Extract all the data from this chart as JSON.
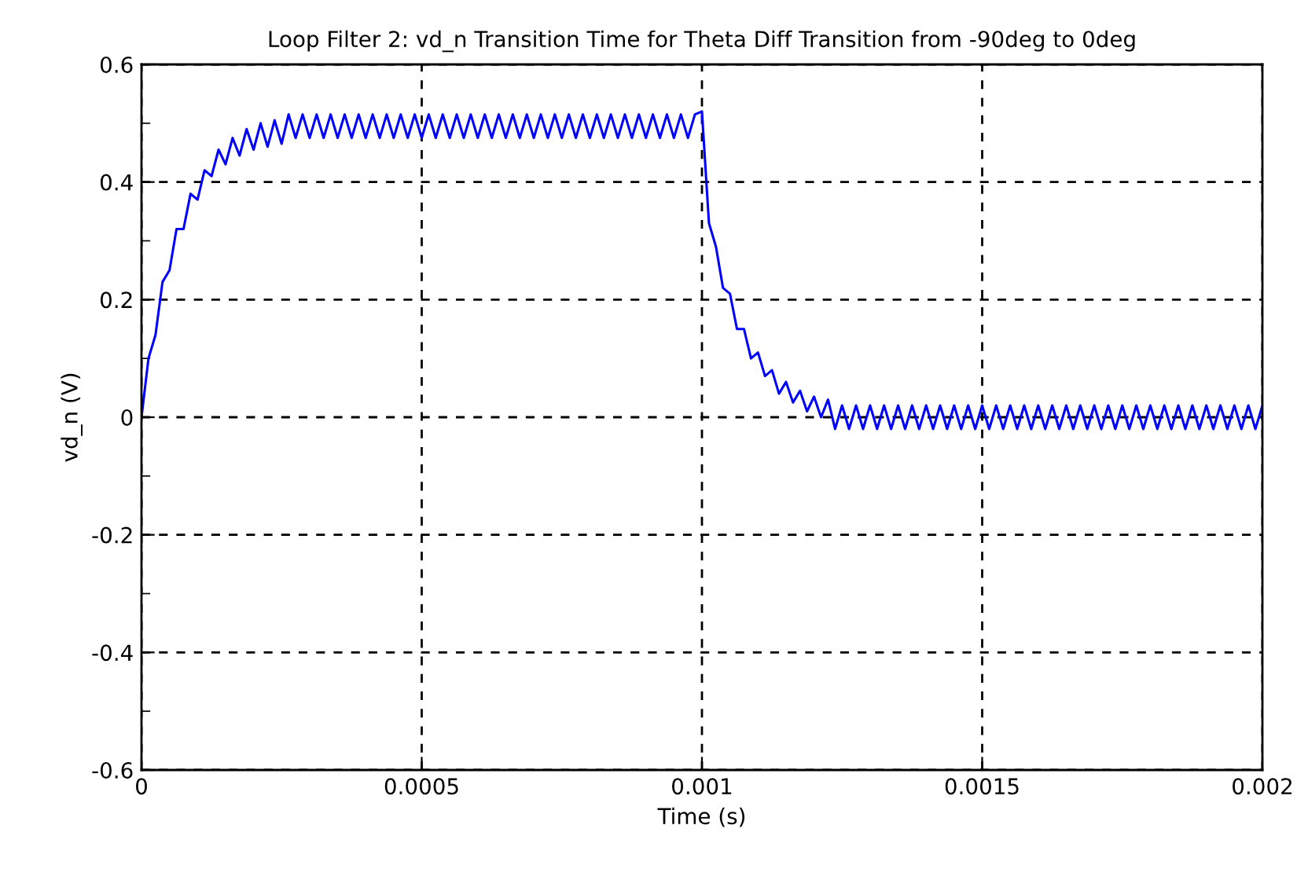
{
  "chart_data": {
    "type": "line",
    "title": "Loop Filter 2: vd_n Transition Time for Theta Diff Transition from -90deg to 0deg",
    "xlabel": "Time (s)",
    "ylabel": "vd_n (V)",
    "xlim": [
      0,
      0.002
    ],
    "ylim": [
      -0.6,
      0.6
    ],
    "xticks": [
      0,
      0.0005,
      0.001,
      0.0015,
      0.002
    ],
    "yticks": [
      -0.6,
      {
        "value": -0.5,
        "label": null
      },
      -0.4,
      {
        "value": -0.3,
        "label": null
      },
      -0.2,
      {
        "value": -0.1,
        "label": null
      },
      0,
      {
        "value": 0.1,
        "label": null
      },
      0.2,
      {
        "value": 0.3,
        "label": null
      },
      0.4,
      {
        "value": 0.5,
        "label": null
      },
      0.6
    ],
    "grid": true,
    "marker": "none",
    "line_style": "solid",
    "series": [
      {
        "color": "#0000ff",
        "x": [
          0,
          1.25e-05,
          2.5e-05,
          3.75e-05,
          5e-05,
          6.25e-05,
          7.5e-05,
          8.75e-05,
          0.0001,
          0.0001125,
          0.000125,
          0.0001375,
          0.00015,
          0.0001625,
          0.000175,
          0.0001875,
          0.0002,
          0.0002125,
          0.000225,
          0.0002375,
          0.00025,
          0.0002625,
          0.000275,
          0.0002875,
          0.0003,
          0.0003125,
          0.000325,
          0.0003375,
          0.00035,
          0.0003625,
          0.000375,
          0.0003875,
          0.0004,
          0.0004125,
          0.000425,
          0.0004375,
          0.00045,
          0.0004625,
          0.000475,
          0.0004875,
          0.0005,
          0.0005125,
          0.000525,
          0.0005375,
          0.00055,
          0.0005625,
          0.000575,
          0.0005875,
          0.0006,
          0.0006125,
          0.000625,
          0.0006375,
          0.00065,
          0.0006625,
          0.000675,
          0.0006875,
          0.0007,
          0.0007125,
          0.000725,
          0.0007375,
          0.00075,
          0.0007625,
          0.000775,
          0.0007875,
          0.0008,
          0.0008125,
          0.000825,
          0.0008375,
          0.00085,
          0.0008625,
          0.000875,
          0.0008875,
          0.0009,
          0.0009125,
          0.000925,
          0.0009375,
          0.00095,
          0.0009625,
          0.000975,
          0.0009875,
          0.001,
          0.0010125,
          0.001025,
          0.0010375,
          0.00105,
          0.0010625,
          0.001075,
          0.0010875,
          0.0011,
          0.0011125,
          0.001125,
          0.0011375,
          0.00115,
          0.0011625,
          0.001175,
          0.0011875,
          0.0012,
          0.0012125,
          0.001225,
          0.0012375,
          0.00125,
          0.0012625,
          0.001275,
          0.0012875,
          0.0013,
          0.0013125,
          0.001325,
          0.0013375,
          0.00135,
          0.0013625,
          0.001375,
          0.0013875,
          0.0014,
          0.0014125,
          0.001425,
          0.0014375,
          0.00145,
          0.0014625,
          0.001475,
          0.0014875,
          0.0015,
          0.0015125,
          0.001525,
          0.0015375,
          0.00155,
          0.0015625,
          0.001575,
          0.0015875,
          0.0016,
          0.0016125,
          0.001625,
          0.0016375,
          0.00165,
          0.0016625,
          0.001675,
          0.0016875,
          0.0017,
          0.0017125,
          0.001725,
          0.0017375,
          0.00175,
          0.0017625,
          0.001775,
          0.0017875,
          0.0018,
          0.0018125,
          0.001825,
          0.0018375,
          0.00185,
          0.0018625,
          0.001875,
          0.0018875,
          0.0019,
          0.0019125,
          0.001925,
          0.0019375,
          0.00195,
          0.0019625,
          0.001975,
          0.0019875,
          0.002
        ],
        "values": [
          0,
          0.1,
          0.14,
          0.23,
          0.25,
          0.32,
          0.32,
          0.38,
          0.37,
          0.42,
          0.41,
          0.455,
          0.43,
          0.475,
          0.445,
          0.49,
          0.455,
          0.5,
          0.46,
          0.505,
          0.465,
          0.515,
          0.475,
          0.515,
          0.475,
          0.515,
          0.475,
          0.515,
          0.475,
          0.515,
          0.475,
          0.515,
          0.475,
          0.515,
          0.475,
          0.515,
          0.475,
          0.515,
          0.475,
          0.515,
          0.475,
          0.515,
          0.475,
          0.515,
          0.475,
          0.515,
          0.475,
          0.515,
          0.475,
          0.515,
          0.475,
          0.515,
          0.475,
          0.515,
          0.475,
          0.515,
          0.475,
          0.515,
          0.475,
          0.515,
          0.475,
          0.515,
          0.475,
          0.515,
          0.475,
          0.515,
          0.475,
          0.515,
          0.475,
          0.515,
          0.475,
          0.515,
          0.475,
          0.515,
          0.475,
          0.515,
          0.475,
          0.515,
          0.475,
          0.515,
          0.52,
          0.33,
          0.29,
          0.22,
          0.21,
          0.15,
          0.15,
          0.1,
          0.11,
          0.07,
          0.08,
          0.04,
          0.06,
          0.025,
          0.045,
          0.01,
          0.035,
          0.0,
          0.03,
          -0.02,
          0.02,
          -0.02,
          0.02,
          -0.02,
          0.02,
          -0.02,
          0.02,
          -0.02,
          0.02,
          -0.02,
          0.02,
          -0.02,
          0.02,
          -0.02,
          0.02,
          -0.02,
          0.02,
          -0.02,
          0.02,
          -0.02,
          0.02,
          -0.02,
          0.02,
          -0.02,
          0.02,
          -0.02,
          0.02,
          -0.02,
          0.02,
          -0.02,
          0.02,
          -0.02,
          0.02,
          -0.02,
          0.02,
          -0.02,
          0.02,
          -0.02,
          0.02,
          -0.02,
          0.02,
          -0.02,
          0.02,
          -0.02,
          0.02,
          -0.02,
          0.02,
          -0.02,
          0.02,
          -0.02,
          0.02,
          -0.02,
          0.02,
          -0.02,
          0.02,
          -0.02,
          0.02,
          -0.02,
          0.02,
          -0.02,
          0.02
        ]
      }
    ]
  }
}
